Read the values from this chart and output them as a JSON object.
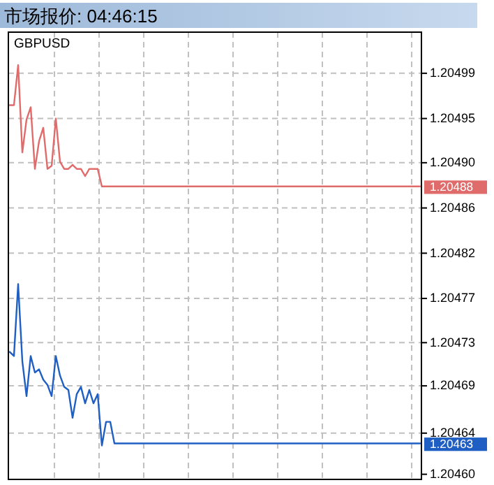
{
  "chart_data": {
    "type": "line",
    "title": "市场报价: 04:46:15",
    "subtitle": "GBPUSD",
    "categories": [
      null,
      null,
      null,
      null,
      null,
      null,
      null,
      null,
      null,
      null,
      null,
      null,
      null,
      null,
      null,
      null,
      null,
      null,
      null,
      null,
      null,
      null,
      null,
      null,
      null,
      null,
      null,
      null,
      null,
      null,
      null,
      null,
      null,
      null,
      null,
      null,
      null,
      null,
      null,
      null,
      null,
      null,
      null,
      null,
      null,
      null,
      null,
      null,
      null,
      null,
      null,
      null,
      null,
      null,
      null,
      null,
      null,
      null,
      null,
      null,
      null,
      null,
      null,
      null,
      null,
      null,
      null,
      null,
      null,
      null,
      null,
      null,
      null,
      null,
      null,
      null,
      null,
      null,
      null,
      null,
      null,
      null,
      null,
      null,
      null,
      null,
      null,
      null,
      null,
      null,
      null,
      null,
      null,
      null,
      null,
      null,
      null,
      null,
      null
    ],
    "series": [
      {
        "color": "#e06b6b",
        "values": [
          1.204959,
          1.204959,
          1.204998,
          1.204913,
          1.204945,
          1.204957,
          1.204897,
          1.204924,
          1.204937,
          1.204897,
          1.2049,
          1.204946,
          1.204904,
          1.204897,
          1.204897,
          1.204901,
          1.204897,
          1.204897,
          1.20489,
          1.204897,
          1.204897,
          1.204897,
          1.20488,
          1.20488,
          1.20488,
          1.20488,
          1.20488,
          1.20488,
          1.20488,
          1.20488,
          1.20488,
          1.20488,
          1.20488,
          1.20488,
          1.20488,
          1.20488,
          1.20488,
          1.20488,
          1.20488,
          1.20488,
          1.20488,
          1.20488,
          1.20488,
          1.20488,
          1.20488,
          1.20488,
          1.20488,
          1.20488,
          1.20488,
          1.20488,
          1.20488,
          1.20488,
          1.20488,
          1.20488,
          1.20488,
          1.20488,
          1.20488,
          1.20488,
          1.20488,
          1.20488,
          1.20488,
          1.20488,
          1.20488,
          1.20488,
          1.20488,
          1.20488,
          1.20488,
          1.20488,
          1.20488,
          1.20488,
          1.20488,
          1.20488,
          1.20488,
          1.20488,
          1.20488,
          1.20488,
          1.20488,
          1.20488,
          1.20488,
          1.20488,
          1.20488,
          1.20488,
          1.20488,
          1.20488,
          1.20488,
          1.20488,
          1.20488,
          1.20488,
          1.20488,
          1.20488,
          1.20488,
          1.20488,
          1.20488,
          1.20488,
          1.20488,
          1.20488,
          1.20488,
          1.20488,
          1.20488
        ]
      },
      {
        "color": "#1f5fc4",
        "values": [
          1.204719,
          1.204715,
          1.204785,
          1.20471,
          1.204676,
          1.204715,
          1.204699,
          1.204702,
          1.204692,
          1.204687,
          1.204676,
          1.204715,
          1.204696,
          1.204685,
          1.204682,
          1.204655,
          1.204678,
          1.204685,
          1.204669,
          1.204682,
          1.204669,
          1.204678,
          1.204628,
          1.204651,
          1.204651,
          1.20463,
          1.20463,
          1.20463,
          1.20463,
          1.20463,
          1.20463,
          1.20463,
          1.20463,
          1.20463,
          1.20463,
          1.20463,
          1.20463,
          1.20463,
          1.20463,
          1.20463,
          1.20463,
          1.20463,
          1.20463,
          1.20463,
          1.20463,
          1.20463,
          1.20463,
          1.20463,
          1.20463,
          1.20463,
          1.20463,
          1.20463,
          1.20463,
          1.20463,
          1.20463,
          1.20463,
          1.20463,
          1.20463,
          1.20463,
          1.20463,
          1.20463,
          1.20463,
          1.20463,
          1.20463,
          1.20463,
          1.20463,
          1.20463,
          1.20463,
          1.20463,
          1.20463,
          1.20463,
          1.20463,
          1.20463,
          1.20463,
          1.20463,
          1.20463,
          1.20463,
          1.20463,
          1.20463,
          1.20463,
          1.20463,
          1.20463,
          1.20463,
          1.20463,
          1.20463,
          1.20463,
          1.20463,
          1.20463,
          1.20463,
          1.20463,
          1.20463,
          1.20463,
          1.20463,
          1.20463,
          1.20463,
          1.20463,
          1.20463,
          1.20463,
          1.20463
        ]
      }
    ],
    "ylim": [
      1.204595,
      1.20503
    ],
    "yticks": [
      1.20499,
      {
        "value": 1.204946,
        "label": "1.20495"
      },
      {
        "value": 1.204903,
        "label": "1.20490"
      },
      {
        "value": 1.204859,
        "label": "1.20486"
      },
      {
        "value": 1.204815,
        "label": "1.20482"
      },
      {
        "value": 1.204771,
        "label": "1.20477"
      },
      {
        "value": 1.204728,
        "label": "1.20473"
      },
      {
        "value": 1.204686,
        "label": "1.20469"
      },
      {
        "value": 1.20464,
        "label": "1.20464"
      },
      {
        "value": 1.2046,
        "label": "1.20460"
      }
    ],
    "grid": true,
    "tick_labels": "y",
    "annotations": [
      "1.20488",
      "1.20463"
    ]
  }
}
